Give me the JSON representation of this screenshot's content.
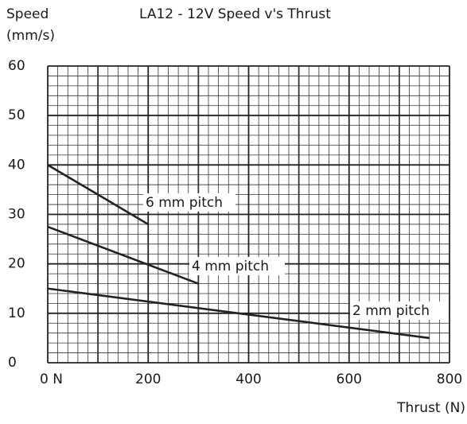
{
  "chart_data": {
    "type": "line",
    "title": "LA12 - 12V Speed v's Thrust",
    "ylabel": [
      "Speed",
      "(mm/s)"
    ],
    "xlabel": "Thrust (N)",
    "xlim": [
      0,
      800
    ],
    "xticks": [
      {
        "value": 0,
        "label": "0 N"
      },
      200,
      400,
      600,
      800
    ],
    "ylim": [
      0,
      60
    ],
    "yticks": [
      0,
      10,
      20,
      30,
      40,
      50,
      60
    ],
    "grid": true,
    "series": [
      {
        "name": "6 mm pitch",
        "color": "#222222",
        "x": [
          0,
          200
        ],
        "values": [
          40,
          28
        ]
      },
      {
        "name": "4 mm pitch",
        "color": "#222222",
        "x": [
          0,
          300
        ],
        "values": [
          27.5,
          16
        ]
      },
      {
        "name": "2 mm pitch",
        "color": "#222222",
        "x": [
          0,
          760
        ],
        "values": [
          15,
          5
        ]
      }
    ]
  }
}
